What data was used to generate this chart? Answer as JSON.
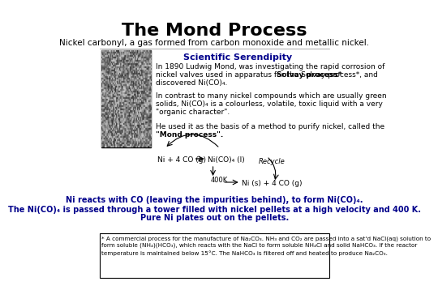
{
  "title": "The Mond Process",
  "subtitle": "Nickel carbonyl, a gas formed from carbon monoxide and metallic nickel.",
  "serendipity_title": "Scientific Serendipity",
  "para1": "In 1890 Ludwig Mond, was investigating the rapid corrosion of\nnickel valves used in apparatus for the Solvay process*, and\ndiscovered Ni(CO)₄.",
  "para1_bold": "Solvay process*",
  "para2": "In contrast to many nickel compounds which are usually green\nsolids, Ni(CO)₄ is a colourless, volatile, toxic liquid with a very\n\"organic character\".",
  "para3": "He used it as the basis of a method to purify nickel, called the\n\"Mond process\".",
  "reaction_label1": "Ni + 4 CO (g)",
  "reaction_label2": "Ni(CO)₄ (l)",
  "reaction_label3": "Ni (s) + 4 CO (g)",
  "reaction_temp": "400K",
  "recycle_label": "Recycle",
  "blue_text1": "Ni reacts with CO (leaving the impurities behind), to form Ni(CO)₄.",
  "blue_text2": "The Ni(CO)₄ is passed through a tower filled with nickel pellets at a high velocity and 400 K.\nPure Ni plates out on the pellets.",
  "footnote": "* A commercial process for the manufacture of Na₂CO₃. NH₃ and CO₂ are passed into a sat'd NaCl(aq) solution to\nform soluble (NH₄)(HCO₃), which reacts with the NaCl to form soluble NH₄Cl and solid NaHCO₃. If the reactor\ntemperature is maintained below 15°C. The NaHCO₃ is filtered off and heated to produce Na₂CO₃.",
  "bg_color": "#ffffff",
  "title_color": "#000000",
  "subtitle_color": "#000000",
  "serendipity_color": "#00008B",
  "body_color": "#000000",
  "blue_color": "#00008B",
  "arrow_color": "#000000",
  "footnote_color": "#000000"
}
